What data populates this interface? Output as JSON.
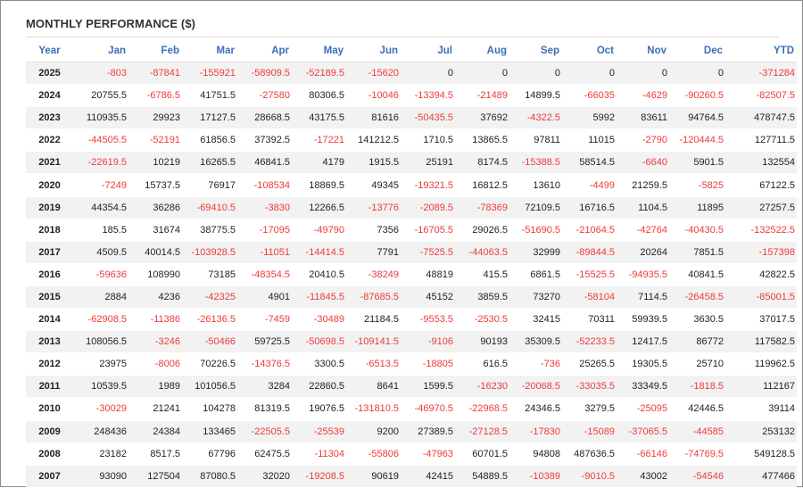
{
  "title": "MONTHLY PERFORMANCE ($)",
  "colors": {
    "negative": "#ee3a3a",
    "header": "#3a6fb5",
    "stripe": "#f2f2f2"
  },
  "headers": [
    "Year",
    "Jan",
    "Feb",
    "Mar",
    "Apr",
    "May",
    "Jun",
    "Jul",
    "Aug",
    "Sep",
    "Oct",
    "Nov",
    "Dec",
    "YTD"
  ],
  "rows": [
    [
      "2025",
      "-803",
      "-87841",
      "-155921",
      "-58909.5",
      "-52189.5",
      "-15620",
      "0",
      "0",
      "0",
      "0",
      "0",
      "0",
      "-371284"
    ],
    [
      "2024",
      "20755.5",
      "-6786.5",
      "41751.5",
      "-27580",
      "80306.5",
      "-10046",
      "-13394.5",
      "-21489",
      "14899.5",
      "-66035",
      "-4629",
      "-90260.5",
      "-82507.5"
    ],
    [
      "2023",
      "110935.5",
      "29923",
      "17127.5",
      "28668.5",
      "43175.5",
      "81616",
      "-50435.5",
      "37692",
      "-4322.5",
      "5992",
      "83611",
      "94764.5",
      "478747.5"
    ],
    [
      "2022",
      "-44505.5",
      "-52191",
      "61856.5",
      "37392.5",
      "-17221",
      "141212.5",
      "1710.5",
      "13865.5",
      "97811",
      "11015",
      "-2790",
      "-120444.5",
      "127711.5"
    ],
    [
      "2021",
      "-22619.5",
      "10219",
      "16265.5",
      "46841.5",
      "4179",
      "1915.5",
      "25191",
      "8174.5",
      "-15388.5",
      "58514.5",
      "-6640",
      "5901.5",
      "132554"
    ],
    [
      "2020",
      "-7249",
      "15737.5",
      "76917",
      "-108534",
      "18869.5",
      "49345",
      "-19321.5",
      "16812.5",
      "13610",
      "-4499",
      "21259.5",
      "-5825",
      "67122.5"
    ],
    [
      "2019",
      "44354.5",
      "36286",
      "-69410.5",
      "-3830",
      "12266.5",
      "-13776",
      "-2089.5",
      "-78369",
      "72109.5",
      "16716.5",
      "1104.5",
      "11895",
      "27257.5"
    ],
    [
      "2018",
      "185.5",
      "31674",
      "38775.5",
      "-17095",
      "-49790",
      "7356",
      "-16705.5",
      "29026.5",
      "-51690.5",
      "-21064.5",
      "-42764",
      "-40430.5",
      "-132522.5"
    ],
    [
      "2017",
      "4509.5",
      "40014.5",
      "-103928.5",
      "-11051",
      "-14414.5",
      "7791",
      "-7525.5",
      "-44063.5",
      "32999",
      "-89844.5",
      "20264",
      "7851.5",
      "-157398"
    ],
    [
      "2016",
      "-59636",
      "108990",
      "73185",
      "-48354.5",
      "20410.5",
      "-38249",
      "48819",
      "415.5",
      "6861.5",
      "-15525.5",
      "-94935.5",
      "40841.5",
      "42822.5"
    ],
    [
      "2015",
      "2884",
      "4236",
      "-42325",
      "4901",
      "-11845.5",
      "-87685.5",
      "45152",
      "3859.5",
      "73270",
      "-58104",
      "7114.5",
      "-26458.5",
      "-85001.5"
    ],
    [
      "2014",
      "-62908.5",
      "-11386",
      "-26136.5",
      "-7459",
      "-30489",
      "21184.5",
      "-9553.5",
      "-2530.5",
      "32415",
      "70311",
      "59939.5",
      "3630.5",
      "37017.5"
    ],
    [
      "2013",
      "108056.5",
      "-3246",
      "-50466",
      "59725.5",
      "-50698.5",
      "-109141.5",
      "-9106",
      "90193",
      "35309.5",
      "-52233.5",
      "12417.5",
      "86772",
      "117582.5"
    ],
    [
      "2012",
      "23975",
      "-8006",
      "70226.5",
      "-14376.5",
      "3300.5",
      "-6513.5",
      "-18805",
      "616.5",
      "-736",
      "25265.5",
      "19305.5",
      "25710",
      "119962.5"
    ],
    [
      "2011",
      "10539.5",
      "1989",
      "101056.5",
      "3284",
      "22860.5",
      "8641",
      "1599.5",
      "-16230",
      "-20068.5",
      "-33035.5",
      "33349.5",
      "-1818.5",
      "112167"
    ],
    [
      "2010",
      "-30029",
      "21241",
      "104278",
      "81319.5",
      "19076.5",
      "-131810.5",
      "-46970.5",
      "-22968.5",
      "24346.5",
      "3279.5",
      "-25095",
      "42446.5",
      "39114"
    ],
    [
      "2009",
      "248436",
      "24384",
      "133465",
      "-22505.5",
      "-25539",
      "9200",
      "27389.5",
      "-27128.5",
      "-17830",
      "-15089",
      "-37065.5",
      "-44585",
      "253132"
    ],
    [
      "2008",
      "23182",
      "8517.5",
      "67796",
      "62475.5",
      "-11304",
      "-55806",
      "-47963",
      "60701.5",
      "94808",
      "487636.5",
      "-66146",
      "-74769.5",
      "549128.5"
    ],
    [
      "2007",
      "93090",
      "127504",
      "87080.5",
      "32020",
      "-19208.5",
      "90619",
      "42415",
      "54889.5",
      "-10389",
      "-9010.5",
      "43002",
      "-54546",
      "477466"
    ]
  ]
}
